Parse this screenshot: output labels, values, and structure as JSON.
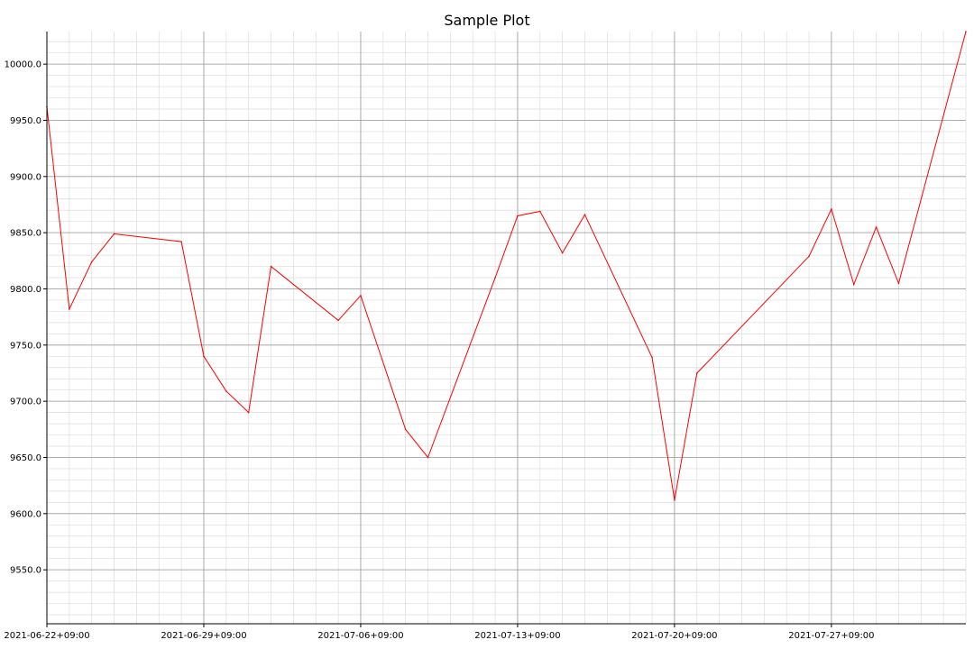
{
  "chart_data": {
    "type": "line",
    "title": "Sample Plot",
    "xlabel": "",
    "ylabel": "",
    "grid": true,
    "x_tick_labels": [
      "2021-06-22+09:00",
      "2021-06-29+09:00",
      "2021-07-06+09:00",
      "2021-07-13+09:00",
      "2021-07-20+09:00",
      "2021-07-27+09:00"
    ],
    "y_tick_labels": [
      "9550.0",
      "9600.0",
      "9650.0",
      "9700.0",
      "9750.0",
      "9800.0",
      "9850.0",
      "9900.0",
      "9950.0",
      "10000.0"
    ],
    "xlim": [
      "2021-06-22",
      "2021-08-02"
    ],
    "ylim": [
      9502,
      10029
    ],
    "series": [
      {
        "color": "#ff0000",
        "x": [
          "2021-06-22",
          "2021-06-23",
          "2021-06-24",
          "2021-06-25",
          "2021-06-28",
          "2021-06-29",
          "2021-06-30",
          "2021-07-01",
          "2021-07-02",
          "2021-07-05",
          "2021-07-06",
          "2021-07-08",
          "2021-07-09",
          "2021-07-12",
          "2021-07-13",
          "2021-07-14",
          "2021-07-15",
          "2021-07-16",
          "2021-07-19",
          "2021-07-20",
          "2021-07-21",
          "2021-07-26",
          "2021-07-27",
          "2021-07-28",
          "2021-07-29",
          "2021-07-30",
          "2021-08-02"
        ],
        "values": [
          9962,
          9782,
          9824,
          9849,
          9842,
          9740,
          9709,
          9690,
          9820,
          9772,
          9794,
          9675,
          9650,
          9810,
          9865,
          9869,
          9832,
          9866,
          9739,
          9612,
          9725,
          9829,
          9871,
          9804,
          9855,
          9805,
          10029
        ]
      }
    ]
  }
}
